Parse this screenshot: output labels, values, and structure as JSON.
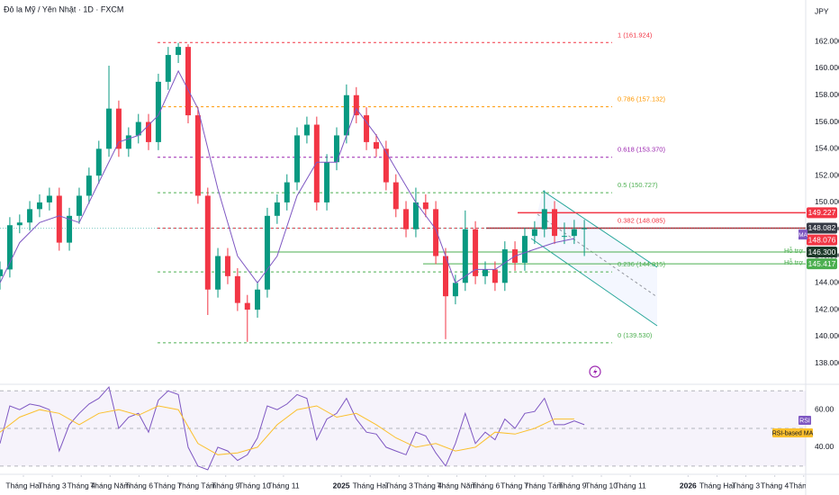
{
  "header": {
    "title": "Đô la Mỹ / Yên Nhật · 1D · FXCM",
    "currency": "JPY"
  },
  "chart_data": [
    {
      "type": "candlestick",
      "up_color": "#089981",
      "down_color": "#f23645",
      "xlim": [
        0.19,
        28.07
      ],
      "xticks": [
        {
          "value": 1,
          "label": "Tháng Hai"
        },
        {
          "value": 2,
          "label": "Tháng 3"
        },
        {
          "value": 3,
          "label": "Tháng 4"
        },
        {
          "value": 4,
          "label": "Tháng Năm"
        },
        {
          "value": 5,
          "label": "Tháng 6"
        },
        {
          "value": 6,
          "label": "Tháng 7"
        },
        {
          "value": 7,
          "label": "Tháng Tám"
        },
        {
          "value": 8,
          "label": "Tháng 9"
        },
        {
          "value": 9,
          "label": "Tháng 10"
        },
        {
          "value": 10,
          "label": "Tháng 11"
        },
        {
          "value": 12,
          "label": "2025"
        },
        {
          "value": 13,
          "label": "Tháng Hai"
        },
        {
          "value": 14,
          "label": "Tháng 3"
        },
        {
          "value": 15,
          "label": "Tháng 4"
        },
        {
          "value": 16,
          "label": "Tháng Năm"
        },
        {
          "value": 17,
          "label": "Tháng 6"
        },
        {
          "value": 18,
          "label": "Tháng 7"
        },
        {
          "value": 19,
          "label": "Tháng Tám"
        },
        {
          "value": 20,
          "label": "Tháng 9"
        },
        {
          "value": 21,
          "label": "Tháng 10"
        },
        {
          "value": 22,
          "label": "Tháng 11"
        },
        {
          "value": 24,
          "label": "2026"
        },
        {
          "value": 25,
          "label": "Tháng Hai"
        },
        {
          "value": 26,
          "label": "Tháng 3"
        },
        {
          "value": 27,
          "label": "Tháng 4"
        },
        {
          "value": 28,
          "label": "Tháng N"
        }
      ],
      "ylim": [
        136.5,
        165.1
      ],
      "yticks": [
        {
          "value": 138,
          "label": "138.000"
        },
        {
          "value": 140,
          "label": "140.000"
        },
        {
          "value": 142,
          "label": "142.000"
        },
        {
          "value": 144,
          "label": "144.000"
        },
        {
          "value": 146,
          "label": "146.000"
        },
        {
          "value": 148,
          "label": "148.000"
        },
        {
          "value": 150,
          "label": "150.000"
        },
        {
          "value": 152,
          "label": "152.000"
        },
        {
          "value": 154,
          "label": "154.000"
        },
        {
          "value": 156,
          "label": "156.000"
        },
        {
          "value": 158,
          "label": "158.000"
        },
        {
          "value": 160,
          "label": "160.000"
        },
        {
          "value": 162,
          "label": "162.000"
        }
      ],
      "x": [
        0.19,
        0.53,
        0.87,
        1.22,
        1.56,
        1.9,
        2.24,
        2.59,
        2.93,
        3.27,
        3.61,
        3.96,
        4.3,
        4.64,
        4.98,
        5.33,
        5.67,
        6.01,
        6.36,
        6.7,
        7.04,
        7.38,
        7.73,
        8.07,
        8.41,
        8.75,
        9.1,
        9.44,
        9.78,
        10.12,
        10.47,
        10.81,
        11.15,
        11.5,
        11.84,
        12.18,
        12.52,
        12.87,
        13.21,
        13.55,
        13.89,
        14.24,
        14.58,
        14.92,
        15.27,
        15.61,
        15.95,
        16.29,
        16.64,
        16.98,
        17.32,
        17.66,
        18.01,
        18.35,
        18.69,
        19.03,
        19.38,
        19.72,
        20.06,
        20.41
      ],
      "open": [
        144.5,
        145,
        148.3,
        148.5,
        149.5,
        150,
        150.5,
        147,
        149,
        150.5,
        152,
        154,
        157,
        154,
        155,
        156,
        154.5,
        159,
        161,
        161.6,
        156.5,
        150.5,
        143.5,
        146,
        144.5,
        142.5,
        142,
        143.5,
        149,
        150,
        151.5,
        155,
        155.8,
        150,
        153,
        155,
        158,
        156.5,
        154.5,
        154,
        151.5,
        149.5,
        148,
        150,
        149.5,
        146,
        143,
        144,
        148,
        144.5,
        145,
        144,
        146.5,
        145.5,
        147.5,
        148,
        149.5,
        147.5,
        147.5,
        148
      ],
      "high": [
        145.6,
        148.9,
        149.1,
        150.1,
        150.6,
        151.1,
        151.1,
        149.6,
        151.1,
        152.6,
        154.6,
        160.2,
        157.6,
        155.6,
        156.6,
        156.6,
        159.6,
        161.6,
        161.9,
        161.8,
        157.1,
        151.1,
        146.6,
        146.6,
        145.1,
        143.1,
        144.1,
        149.6,
        150.6,
        152.1,
        155.6,
        156.4,
        156.4,
        153.6,
        155.6,
        158.8,
        158.6,
        157.1,
        155.1,
        154.6,
        152.1,
        150.1,
        151.1,
        150.6,
        150.1,
        146.6,
        144.6,
        149.4,
        148.6,
        145.6,
        145.6,
        147.1,
        147.1,
        148.1,
        148.6,
        150.9,
        150.1,
        148.5,
        148.7,
        148.7
      ],
      "low": [
        143.5,
        144.4,
        147.7,
        147.9,
        148.9,
        149.4,
        146.4,
        146.4,
        148.4,
        149.9,
        151.4,
        153.4,
        153.4,
        153.4,
        154.4,
        153.9,
        153.9,
        158.4,
        160.4,
        155.9,
        149.9,
        141.6,
        142.9,
        143.9,
        141.9,
        139.6,
        141.4,
        142.9,
        148.4,
        149.4,
        150.9,
        154.4,
        149.4,
        149.4,
        152.4,
        154.4,
        155.9,
        153.9,
        153.4,
        150.9,
        148.9,
        147.4,
        147.4,
        148.9,
        145.4,
        139.8,
        142.4,
        143.4,
        143.9,
        143.9,
        143.4,
        143.4,
        144.9,
        144.9,
        146.9,
        147.4,
        146.9,
        146.9,
        146.9,
        146.0
      ],
      "close": [
        145,
        148.3,
        148.5,
        149.5,
        150,
        150.5,
        147,
        149,
        150.5,
        152,
        154,
        157,
        154,
        155,
        156,
        154.5,
        159,
        161,
        161.6,
        156.5,
        150.5,
        143.5,
        146,
        144.5,
        142.5,
        142,
        143.5,
        149,
        150,
        151.5,
        155,
        155.8,
        150,
        153,
        155,
        158,
        156.5,
        154.5,
        154,
        151.5,
        149.5,
        148,
        150,
        149.5,
        146,
        143,
        144,
        148,
        144.5,
        145,
        144,
        146.5,
        145.5,
        147.5,
        148,
        149.5,
        147.5,
        147.5,
        148,
        148.076
      ],
      "ma": {
        "name": "MA",
        "color": "#7e57c2",
        "x": [
          0.19,
          0.87,
          1.56,
          2.24,
          2.93,
          3.61,
          4.3,
          4.98,
          5.67,
          6.36,
          7.04,
          7.73,
          8.41,
          9.1,
          9.78,
          10.47,
          11.15,
          11.84,
          12.52,
          13.21,
          13.89,
          14.58,
          15.27,
          15.95,
          16.64,
          17.32,
          18.01,
          18.69,
          19.38,
          20.06
        ],
        "values": [
          144,
          147,
          148.5,
          149,
          148.5,
          151.5,
          154.5,
          155,
          156.5,
          159.8,
          157,
          151,
          146,
          144,
          146,
          150.5,
          153,
          153,
          157,
          155,
          152.5,
          150,
          148,
          144,
          145,
          145,
          146,
          146.5,
          147,
          147.3
        ]
      },
      "fib": [
        {
          "label": "1 (161.924)",
          "value": 161.924,
          "color": "#f23645"
        },
        {
          "label": "0.786 (157.132)",
          "value": 157.132,
          "color": "#ff9800"
        },
        {
          "label": "0.618 (153.370)",
          "value": 153.37,
          "color": "#9c27b0"
        },
        {
          "label": "0.5 (150.727)",
          "value": 150.727,
          "color": "#4caf50"
        },
        {
          "label": "0.382 (148.085)",
          "value": 148.085,
          "color": "#f23645"
        },
        {
          "label": "0.236 (144.815)",
          "value": 144.815,
          "color": "#4caf50"
        },
        {
          "label": "0 (139.530)",
          "value": 139.53,
          "color": "#4caf50"
        }
      ],
      "levels": [
        {
          "value": 149.227,
          "label": "149.227",
          "color": "#f23645",
          "tag_color": "#f23645"
        },
        {
          "value": 148.082,
          "label": "148.082",
          "color": "#b22833",
          "tag_color": "#363a45"
        },
        {
          "name": "Hỗ trợ",
          "value": 146.3,
          "label": "146.300",
          "color": "#4caf50",
          "tag_color": "#1e3a2a"
        },
        {
          "name": "Hỗ trợ 2",
          "value": 145.417,
          "label": "145.417",
          "color": "#4caf50",
          "tag_color": "#4caf50"
        }
      ],
      "last_price": {
        "value": 148.076,
        "label": "148.076",
        "color": "#f23645"
      }
    },
    {
      "type": "line",
      "ylim": [
        28,
        73
      ],
      "yticks": [
        {
          "value": 60,
          "label": "60.00"
        },
        {
          "value": 40,
          "label": "40.00"
        }
      ],
      "bands": [
        70,
        50,
        30
      ],
      "series": [
        {
          "name": "RSI",
          "color": "#7e57c2",
          "x": [
            0.19,
            0.53,
            0.87,
            1.22,
            1.56,
            1.9,
            2.24,
            2.59,
            2.93,
            3.27,
            3.61,
            3.96,
            4.3,
            4.64,
            4.98,
            5.33,
            5.67,
            6.01,
            6.36,
            6.7,
            7.04,
            7.38,
            7.73,
            8.07,
            8.41,
            8.75,
            9.1,
            9.44,
            9.78,
            10.12,
            10.47,
            10.81,
            11.15,
            11.5,
            11.84,
            12.18,
            12.52,
            12.87,
            13.21,
            13.55,
            13.89,
            14.24,
            14.58,
            14.92,
            15.27,
            15.61,
            15.95,
            16.29,
            16.64,
            16.98,
            17.32,
            17.66,
            18.01,
            18.35,
            18.69,
            19.03,
            19.38,
            19.72,
            20.06,
            20.41
          ],
          "values": [
            42,
            62,
            60,
            63,
            62,
            60,
            38,
            52,
            58,
            63,
            66,
            72,
            50,
            56,
            58,
            48,
            65,
            70,
            68,
            40,
            30,
            28,
            40,
            38,
            33,
            36,
            45,
            62,
            60,
            63,
            68,
            66,
            44,
            55,
            58,
            66,
            55,
            48,
            47,
            40,
            38,
            36,
            48,
            46,
            37,
            30,
            42,
            58,
            42,
            48,
            44,
            55,
            50,
            58,
            59,
            66,
            52,
            52,
            54,
            52
          ]
        },
        {
          "name": "RSI-based MA",
          "color": "#fbc02d",
          "x": [
            0.19,
            0.87,
            1.56,
            2.24,
            2.93,
            3.61,
            4.3,
            4.98,
            5.67,
            6.36,
            7.04,
            7.73,
            8.41,
            9.1,
            9.78,
            10.47,
            11.15,
            11.84,
            12.52,
            13.21,
            13.89,
            14.58,
            15.27,
            15.95,
            16.64,
            17.32,
            18.01,
            18.69,
            19.38,
            20.06
          ],
          "values": [
            48,
            56,
            60,
            58,
            52,
            58,
            60,
            57,
            62,
            60,
            42,
            36,
            37,
            40,
            52,
            60,
            62,
            56,
            58,
            52,
            45,
            40,
            42,
            38,
            40,
            48,
            47,
            50,
            55,
            55
          ]
        }
      ]
    }
  ]
}
